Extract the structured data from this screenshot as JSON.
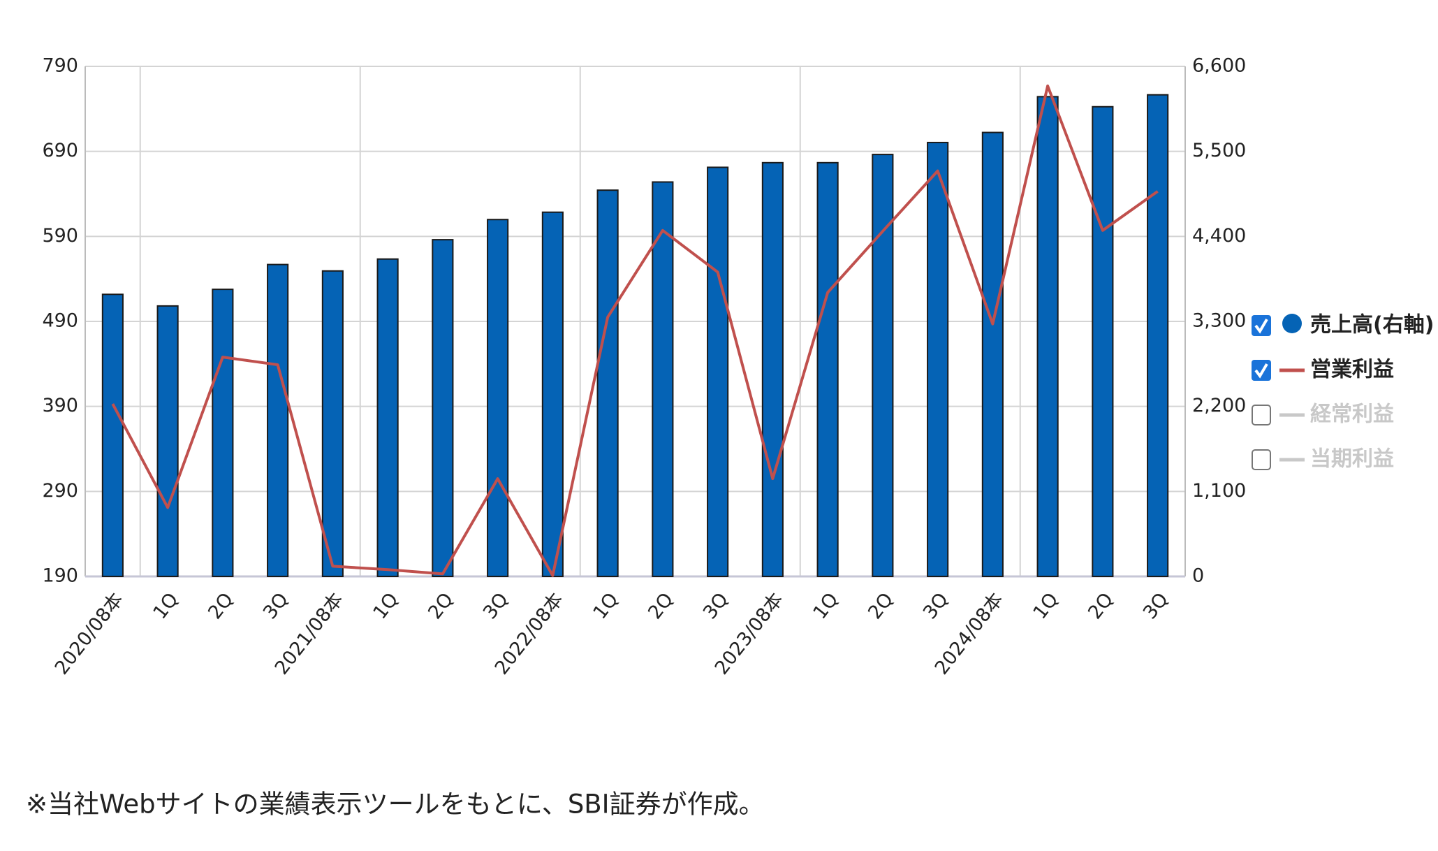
{
  "chart_data": {
    "type": "bar-line",
    "categories": [
      "2020/08本",
      "1Q",
      "2Q",
      "3Q",
      "2021/08本",
      "1Q",
      "2Q",
      "3Q",
      "2022/08本",
      "1Q",
      "2Q",
      "3Q",
      "2023/08本",
      "1Q",
      "2Q",
      "3Q",
      "2024/08本",
      "1Q",
      "2Q",
      "3Q"
    ],
    "series": [
      {
        "name": "売上高(右軸)",
        "type": "bar",
        "axis": "y2",
        "color": "#0563b5",
        "checked": true,
        "values": [
          3650,
          3500,
          3715,
          4036,
          3953,
          4107,
          4357,
          4618,
          4713,
          4998,
          5104,
          5294,
          5354,
          5354,
          5460,
          5615,
          5745,
          6208,
          6078,
          6232
        ]
      },
      {
        "name": "営業利益",
        "type": "line",
        "axis": "y",
        "color": "#c0504d",
        "checked": true,
        "values": [
          393,
          271,
          448,
          439,
          202,
          198,
          193,
          305,
          191,
          495,
          597,
          548,
          305,
          524,
          596,
          667,
          487,
          767,
          597,
          643
        ]
      },
      {
        "name": "経常利益",
        "type": "line",
        "color": "#c8c8c8",
        "checked": false
      },
      {
        "name": "当期利益",
        "type": "line",
        "color": "#c8c8c8",
        "checked": false
      }
    ],
    "ylim": [
      190,
      790
    ],
    "yticks": [
      190,
      290,
      390,
      490,
      590,
      690,
      790
    ],
    "y2lim": [
      0,
      6600
    ],
    "y2ticks": [
      0,
      {
        "value": 1100,
        "label": "1,100"
      },
      {
        "value": 2200,
        "label": "2,200"
      },
      {
        "value": 3300,
        "label": "3,300"
      },
      {
        "value": 4400,
        "label": "4,400"
      },
      {
        "value": 5500,
        "label": "5,500"
      },
      {
        "value": 6600,
        "label": "6,600"
      }
    ],
    "grid": true,
    "legend": "right",
    "note": "※当社Webサイトの業績表示ツールをもとに、SBI証券が作成。"
  }
}
